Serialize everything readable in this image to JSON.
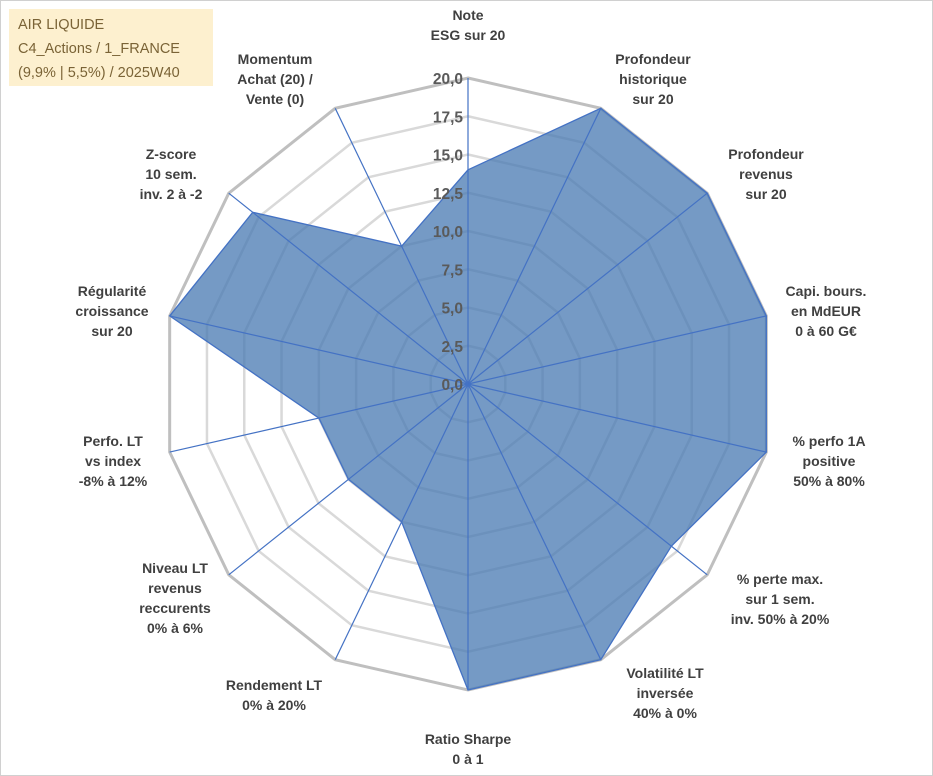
{
  "info": {
    "line1": "AIR LIQUIDE",
    "line2": "C4_Actions / 1_FRANCE",
    "line3": "(9,9% | 5,5%) / 2025W40"
  },
  "colors": {
    "fill": "#4a7ab3",
    "stroke": "#4472c4",
    "grid_outer": "#bfbfbf",
    "grid_inner": "#d9d9d9"
  },
  "chart_data": {
    "type": "radar",
    "title": "",
    "rmin": 0,
    "rmax": 20,
    "ticks": [
      "0,0",
      "2,5",
      "5,0",
      "7,5",
      "10,0",
      "12,5",
      "15,0",
      "17,5",
      "20,0"
    ],
    "categories": [
      [
        "Note",
        "ESG sur 20"
      ],
      [
        "Profondeur",
        "historique",
        "sur 20"
      ],
      [
        "Profondeur",
        "revenus",
        "sur 20"
      ],
      [
        "Capi. bours.",
        "en MdEUR",
        "0 à 60 G€"
      ],
      [
        "% perfo 1A",
        "positive",
        "50% à 80%"
      ],
      [
        "% perte max.",
        "sur 1 sem.",
        "inv. 50% à 20%"
      ],
      [
        "Volatilité LT",
        "inversée",
        "40% à 0%"
      ],
      [
        "Ratio Sharpe",
        "0 à 1"
      ],
      [
        "Rendement LT",
        "0% à 20%"
      ],
      [
        "Niveau LT",
        "revenus",
        "reccurents",
        "0% à 6%"
      ],
      [
        "Perfo. LT",
        "vs index",
        "-8% à 12%"
      ],
      [
        "Régularité",
        "croissance",
        "sur 20"
      ],
      [
        "Z-score",
        "10 sem.",
        "inv. 2 à -2"
      ],
      [
        "Momentum",
        "Achat (20) /",
        "Vente (0)"
      ]
    ],
    "series": [
      {
        "name": "AIR LIQUIDE",
        "values": [
          14,
          20,
          20,
          20,
          20,
          17,
          20,
          20,
          10,
          10,
          10,
          20,
          18,
          10
        ]
      }
    ]
  }
}
